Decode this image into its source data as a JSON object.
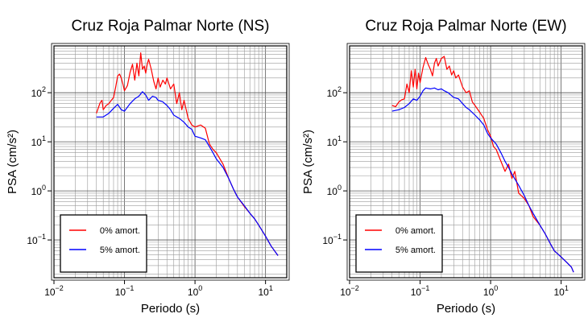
{
  "chart_data": [
    {
      "type": "line",
      "title": "Cruz Roja Palmar Norte (NS)",
      "xlabel": "Periodo (s)",
      "ylabel": "PSA (cm/s²)",
      "xscale": "log",
      "yscale": "log",
      "xlim": [
        0.01,
        20
      ],
      "ylim": [
        0.017,
        900
      ],
      "x_ticks": [
        0.01,
        0.1,
        1,
        10
      ],
      "y_ticks": [
        0.1,
        1,
        10,
        100
      ],
      "grid": true,
      "legend_position": "bottom-left",
      "series": [
        {
          "name": "0% amort.",
          "color": "#ff0000",
          "points": [
            [
              0.04,
              38
            ],
            [
              0.045,
              62
            ],
            [
              0.048,
              70
            ],
            [
              0.05,
              45
            ],
            [
              0.055,
              55
            ],
            [
              0.06,
              60
            ],
            [
              0.065,
              70
            ],
            [
              0.07,
              80
            ],
            [
              0.075,
              130
            ],
            [
              0.08,
              220
            ],
            [
              0.085,
              240
            ],
            [
              0.09,
              200
            ],
            [
              0.095,
              150
            ],
            [
              0.1,
              110
            ],
            [
              0.11,
              140
            ],
            [
              0.12,
              260
            ],
            [
              0.13,
              380
            ],
            [
              0.14,
              180
            ],
            [
              0.15,
              400
            ],
            [
              0.16,
              220
            ],
            [
              0.17,
              650
            ],
            [
              0.18,
              300
            ],
            [
              0.19,
              350
            ],
            [
              0.2,
              250
            ],
            [
              0.21,
              380
            ],
            [
              0.22,
              480
            ],
            [
              0.24,
              300
            ],
            [
              0.26,
              170
            ],
            [
              0.28,
              120
            ],
            [
              0.3,
              200
            ],
            [
              0.32,
              130
            ],
            [
              0.35,
              180
            ],
            [
              0.38,
              150
            ],
            [
              0.4,
              200
            ],
            [
              0.45,
              120
            ],
            [
              0.5,
              150
            ],
            [
              0.55,
              60
            ],
            [
              0.6,
              100
            ],
            [
              0.65,
              45
            ],
            [
              0.7,
              70
            ],
            [
              0.8,
              30
            ],
            [
              0.9,
              22
            ],
            [
              1,
              20
            ],
            [
              1.2,
              22
            ],
            [
              1.4,
              19
            ],
            [
              1.6,
              9
            ],
            [
              1.8,
              7
            ],
            [
              2,
              6
            ],
            [
              2.5,
              3.5
            ],
            [
              3,
              1.8
            ],
            [
              3.5,
              1.1
            ],
            [
              4,
              0.75
            ],
            [
              5,
              0.48
            ],
            [
              6,
              0.35
            ],
            [
              7,
              0.27
            ],
            [
              8,
              0.2
            ],
            [
              10,
              0.12
            ],
            [
              12,
              0.075
            ],
            [
              15,
              0.048
            ]
          ]
        },
        {
          "name": "5% amort.",
          "color": "#0000ff",
          "points": [
            [
              0.04,
              32
            ],
            [
              0.05,
              32
            ],
            [
              0.06,
              38
            ],
            [
              0.07,
              48
            ],
            [
              0.08,
              58
            ],
            [
              0.09,
              45
            ],
            [
              0.1,
              42
            ],
            [
              0.12,
              60
            ],
            [
              0.14,
              75
            ],
            [
              0.16,
              85
            ],
            [
              0.18,
              105
            ],
            [
              0.2,
              90
            ],
            [
              0.22,
              70
            ],
            [
              0.25,
              85
            ],
            [
              0.28,
              80
            ],
            [
              0.3,
              70
            ],
            [
              0.35,
              65
            ],
            [
              0.4,
              55
            ],
            [
              0.45,
              45
            ],
            [
              0.5,
              35
            ],
            [
              0.6,
              30
            ],
            [
              0.7,
              25
            ],
            [
              0.8,
              20
            ],
            [
              0.9,
              18
            ],
            [
              1,
              13
            ],
            [
              1.2,
              12
            ],
            [
              1.4,
              11
            ],
            [
              1.6,
              8
            ],
            [
              1.8,
              6
            ],
            [
              2,
              4.5
            ],
            [
              2.5,
              3
            ],
            [
              3,
              1.8
            ],
            [
              3.5,
              1.1
            ],
            [
              4,
              0.75
            ],
            [
              5,
              0.5
            ],
            [
              6,
              0.35
            ],
            [
              7,
              0.27
            ],
            [
              8,
              0.2
            ],
            [
              10,
              0.12
            ],
            [
              12,
              0.075
            ],
            [
              15,
              0.048
            ]
          ]
        }
      ]
    },
    {
      "type": "line",
      "title": "Cruz Roja Palmar Norte (EW)",
      "xlabel": "Periodo (s)",
      "ylabel": "PSA (cm/s²)",
      "xscale": "log",
      "yscale": "log",
      "xlim": [
        0.01,
        20
      ],
      "ylim": [
        0.017,
        900
      ],
      "x_ticks": [
        0.01,
        0.1,
        1,
        10
      ],
      "y_ticks": [
        0.1,
        1,
        10,
        100
      ],
      "grid": true,
      "legend_position": "bottom-left",
      "series": [
        {
          "name": "0% amort.",
          "color": "#ff0000",
          "points": [
            [
              0.04,
              55
            ],
            [
              0.045,
              52
            ],
            [
              0.05,
              65
            ],
            [
              0.055,
              72
            ],
            [
              0.06,
              75
            ],
            [
              0.065,
              150
            ],
            [
              0.07,
              100
            ],
            [
              0.075,
              280
            ],
            [
              0.08,
              130
            ],
            [
              0.085,
              300
            ],
            [
              0.09,
              120
            ],
            [
              0.095,
              250
            ],
            [
              0.1,
              160
            ],
            [
              0.11,
              330
            ],
            [
              0.12,
              520
            ],
            [
              0.13,
              380
            ],
            [
              0.14,
              300
            ],
            [
              0.15,
              220
            ],
            [
              0.16,
              400
            ],
            [
              0.17,
              500
            ],
            [
              0.18,
              350
            ],
            [
              0.2,
              500
            ],
            [
              0.22,
              550
            ],
            [
              0.24,
              300
            ],
            [
              0.26,
              350
            ],
            [
              0.28,
              230
            ],
            [
              0.3,
              280
            ],
            [
              0.32,
              200
            ],
            [
              0.35,
              230
            ],
            [
              0.4,
              130
            ],
            [
              0.45,
              100
            ],
            [
              0.5,
              110
            ],
            [
              0.55,
              65
            ],
            [
              0.6,
              55
            ],
            [
              0.7,
              40
            ],
            [
              0.8,
              30
            ],
            [
              0.9,
              18
            ],
            [
              1,
              13
            ],
            [
              1.1,
              8
            ],
            [
              1.2,
              7
            ],
            [
              1.4,
              4
            ],
            [
              1.6,
              2.5
            ],
            [
              1.8,
              3.5
            ],
            [
              2,
              1.8
            ],
            [
              2.2,
              2.5
            ],
            [
              2.5,
              0.9
            ],
            [
              3,
              0.7
            ],
            [
              3.5,
              0.5
            ],
            [
              4,
              0.3
            ],
            [
              5,
              0.2
            ],
            [
              6,
              0.13
            ],
            [
              7,
              0.085
            ],
            [
              8,
              0.06
            ],
            [
              10,
              0.045
            ],
            [
              12,
              0.035
            ],
            [
              14,
              0.028
            ],
            [
              15,
              0.022
            ]
          ]
        },
        {
          "name": "5% amort.",
          "color": "#0000ff",
          "points": [
            [
              0.04,
              42
            ],
            [
              0.05,
              45
            ],
            [
              0.06,
              50
            ],
            [
              0.07,
              60
            ],
            [
              0.08,
              75
            ],
            [
              0.09,
              70
            ],
            [
              0.1,
              85
            ],
            [
              0.11,
              110
            ],
            [
              0.12,
              125
            ],
            [
              0.14,
              120
            ],
            [
              0.16,
              125
            ],
            [
              0.18,
              115
            ],
            [
              0.2,
              120
            ],
            [
              0.22,
              110
            ],
            [
              0.25,
              100
            ],
            [
              0.3,
              80
            ],
            [
              0.35,
              75
            ],
            [
              0.4,
              60
            ],
            [
              0.45,
              50
            ],
            [
              0.5,
              45
            ],
            [
              0.6,
              35
            ],
            [
              0.7,
              28
            ],
            [
              0.8,
              22
            ],
            [
              0.9,
              15
            ],
            [
              1,
              12
            ],
            [
              1.2,
              9
            ],
            [
              1.4,
              6
            ],
            [
              1.6,
              4
            ],
            [
              1.8,
              3
            ],
            [
              2,
              2.2
            ],
            [
              2.5,
              1.3
            ],
            [
              3,
              0.8
            ],
            [
              3.5,
              0.5
            ],
            [
              4,
              0.35
            ],
            [
              5,
              0.2
            ],
            [
              6,
              0.13
            ],
            [
              7,
              0.085
            ],
            [
              8,
              0.06
            ],
            [
              10,
              0.045
            ],
            [
              12,
              0.035
            ],
            [
              14,
              0.028
            ],
            [
              15,
              0.022
            ]
          ]
        }
      ]
    }
  ]
}
